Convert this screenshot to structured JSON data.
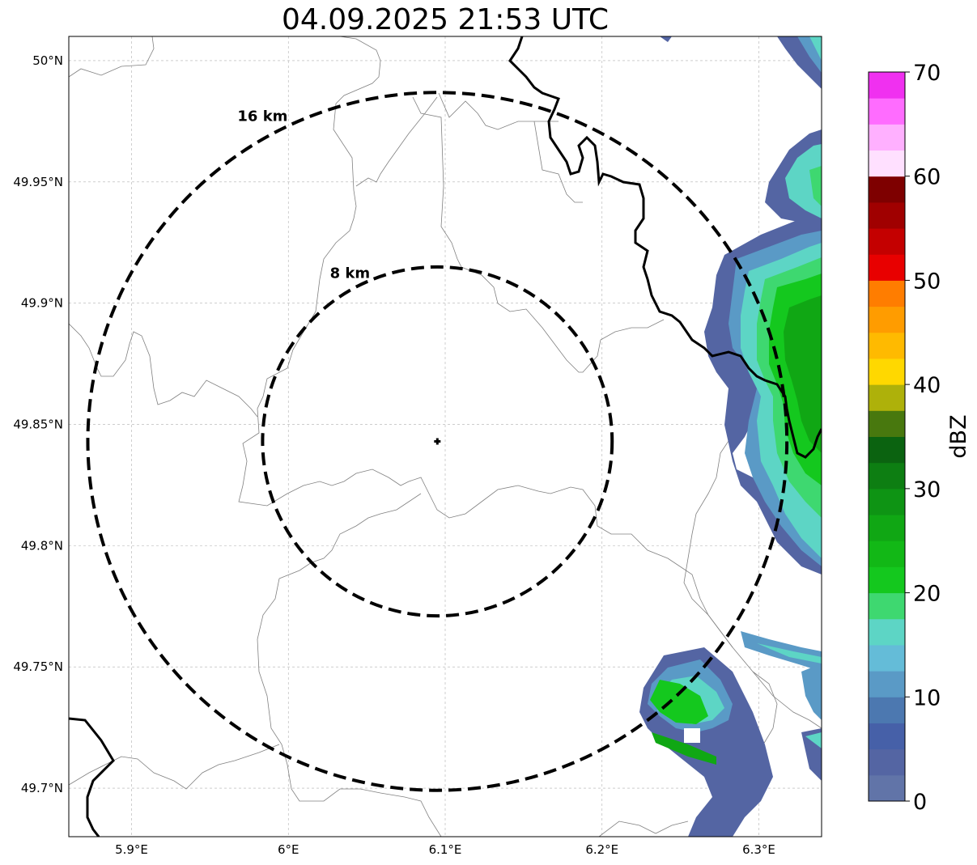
{
  "title": "04.09.2025 21:53 UTC",
  "map": {
    "lon_ticks": [
      {
        "value": 5.9,
        "label": "5.9°E"
      },
      {
        "value": 6.0,
        "label": "6°E"
      },
      {
        "value": 6.1,
        "label": "6.1°E"
      },
      {
        "value": 6.2,
        "label": "6.2°E"
      },
      {
        "value": 6.3,
        "label": "6.3°E"
      }
    ],
    "lat_ticks": [
      {
        "value": 50.0,
        "label": "50°N"
      },
      {
        "value": 49.95,
        "label": "49.95°N"
      },
      {
        "value": 49.9,
        "label": "49.9°N"
      },
      {
        "value": 49.85,
        "label": "49.85°N"
      },
      {
        "value": 49.8,
        "label": "49.8°N"
      },
      {
        "value": 49.75,
        "label": "49.75°N"
      },
      {
        "value": 49.7,
        "label": "49.7°N"
      }
    ],
    "lon_range": [
      5.86,
      6.34
    ],
    "lat_range": [
      49.68,
      50.01
    ],
    "radar_site": {
      "lon": 6.095,
      "lat": 49.843
    },
    "rings": [
      {
        "label": "8 km",
        "radius_km": 8
      },
      {
        "label": "16 km",
        "radius_km": 16
      }
    ],
    "grid": true
  },
  "colorbar": {
    "label": "dBZ",
    "ticks": [
      "0",
      "10",
      "20",
      "30",
      "40",
      "50",
      "60",
      "70"
    ],
    "min": 0,
    "max": 70,
    "colors": [
      "#6174a8",
      "#5465a3",
      "#4660a8",
      "#4c78b0",
      "#5a9ac6",
      "#64bcd8",
      "#5dd5c5",
      "#3ed870",
      "#14c81e",
      "#12b816",
      "#10a714",
      "#0e9414",
      "#0d7e12",
      "#0b6310",
      "#48780e",
      "#aeb10a",
      "#ffd800",
      "#ffba00",
      "#ff9c00",
      "#ff7d00",
      "#e80000",
      "#c40000",
      "#a00000",
      "#7e0000",
      "#ffe0ff",
      "#ffb0ff",
      "#ff6cff",
      "#f030f0"
    ]
  }
}
